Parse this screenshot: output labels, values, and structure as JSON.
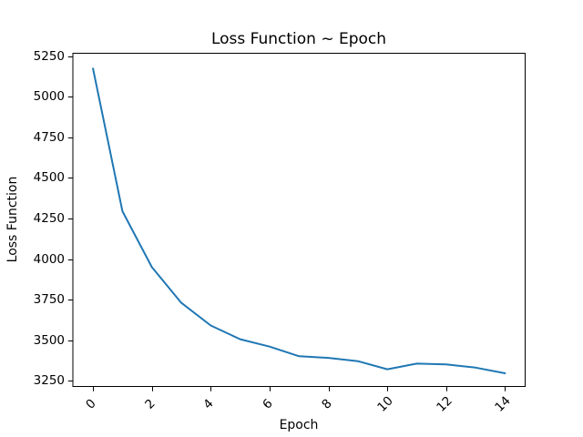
{
  "chart_data": {
    "type": "line",
    "title": "Loss Function ~ Epoch",
    "xlabel": "Epoch",
    "ylabel": "Loss Function",
    "x": [
      0,
      1,
      2,
      3,
      4,
      5,
      6,
      7,
      8,
      9,
      10,
      11,
      12,
      13,
      14
    ],
    "series": [
      {
        "name": "loss",
        "color": "#1f77b4",
        "values": [
          5175,
          4295,
          3950,
          3730,
          3590,
          3505,
          3460,
          3400,
          3390,
          3370,
          3320,
          3355,
          3350,
          3330,
          3295
        ]
      }
    ],
    "xticks": [
      0,
      2,
      4,
      6,
      8,
      10,
      12,
      14
    ],
    "yticks": [
      3250,
      3500,
      3750,
      4000,
      4250,
      4500,
      4750,
      5000,
      5250
    ],
    "xlim": [
      -0.7,
      14.7
    ],
    "ylim": [
      3211,
      5272
    ],
    "xtick_rotation": 45,
    "grid": false,
    "legend_visible": false,
    "axis_color": "#000000",
    "text_color": "#000000",
    "background_color": "#ffffff"
  }
}
